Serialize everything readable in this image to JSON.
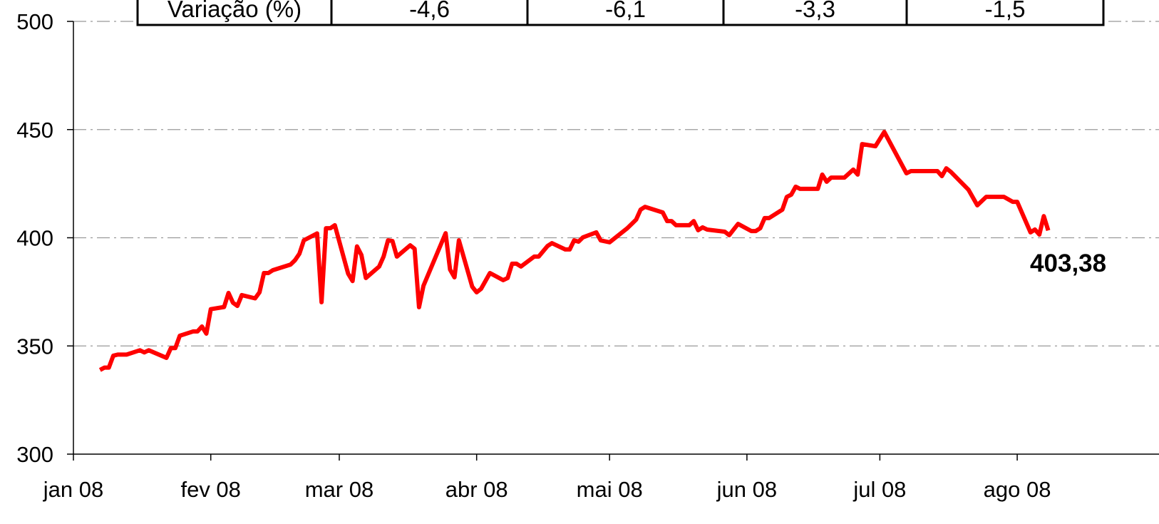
{
  "chart_data": {
    "type": "line",
    "table": {
      "rows": [
        [
          "Variação (%)",
          "-4,6",
          "-6,1",
          "-3,3",
          "-1,5"
        ]
      ]
    },
    "x": [
      6,
      7,
      8,
      9,
      10,
      12,
      15,
      16,
      17,
      21,
      22,
      23,
      24,
      27,
      28,
      29,
      30,
      31,
      34,
      35,
      36,
      37,
      38,
      41,
      42,
      43,
      44,
      45,
      49,
      50,
      51,
      52,
      55,
      56,
      57,
      58,
      59,
      62,
      63,
      64,
      65,
      66,
      69,
      70,
      71,
      72,
      73,
      76,
      77,
      78,
      79,
      84,
      85,
      86,
      87,
      90,
      91,
      92,
      94,
      97,
      98,
      99,
      100,
      101,
      104,
      105,
      107,
      108,
      111,
      112,
      113,
      114,
      115,
      118,
      119,
      121,
      125,
      127,
      128,
      129,
      133,
      134,
      135,
      136,
      139,
      140,
      141,
      142,
      143,
      147,
      148,
      150,
      153,
      154,
      155,
      156,
      157,
      160,
      161,
      162,
      163,
      164,
      168,
      169,
      170,
      171,
      174,
      176,
      177,
      178,
      181,
      183,
      188,
      189,
      195,
      196,
      197,
      198,
      202,
      204,
      206,
      210,
      212,
      213,
      216,
      217,
      218,
      219,
      220
    ],
    "series": [
      {
        "color": "#ff0000",
        "values": [
          338.9,
          340,
          340,
          345.5,
          346,
          346,
          348,
          347,
          348,
          344.5,
          349,
          349,
          354.7,
          356.7,
          356.7,
          359,
          355.7,
          367,
          368,
          374.5,
          370,
          368.5,
          373.5,
          372,
          374.8,
          383.7,
          383.7,
          385,
          387.6,
          389.6,
          392.6,
          398.8,
          402,
          370.2,
          404.4,
          404.4,
          405.8,
          383.4,
          380,
          396,
          392,
          381.4,
          386.7,
          391.3,
          398.8,
          398.5,
          391.3,
          396.5,
          394.9,
          367.9,
          377.8,
          402.1,
          385.3,
          381.7,
          398.8,
          377.4,
          374.8,
          376.4,
          383.7,
          380.4,
          381.4,
          388,
          388,
          386.7,
          391.3,
          391.3,
          396.2,
          397.5,
          394.6,
          394.6,
          398.8,
          398.2,
          400.2,
          402.5,
          398.8,
          397.9,
          404.4,
          408.4,
          413,
          414.3,
          411.7,
          407.7,
          407.7,
          405.8,
          405.8,
          407.7,
          403.5,
          404.8,
          403.8,
          402.8,
          401.2,
          406.4,
          403.1,
          403.1,
          404.4,
          409.1,
          409.1,
          413,
          418.9,
          419.9,
          423.6,
          422.6,
          422.6,
          429.2,
          425.9,
          427.8,
          427.8,
          431.5,
          429.2,
          443.3,
          442.3,
          448.9,
          429.8,
          430.8,
          430.8,
          428.5,
          432.1,
          430.5,
          422.2,
          415,
          418.9,
          418.9,
          416.6,
          416.6,
          402.5,
          403.8,
          401.5,
          410,
          403.38
        ]
      }
    ],
    "end_label": "403,38",
    "xlim": [
      0,
      245
    ],
    "xticks": [
      {
        "value": 0,
        "label": "jan 08"
      },
      {
        "value": 31,
        "label": "fev 08"
      },
      {
        "value": 60,
        "label": "mar 08"
      },
      {
        "value": 91,
        "label": "abr 08"
      },
      {
        "value": 121,
        "label": "mai 08"
      },
      {
        "value": 152,
        "label": "jun 08"
      },
      {
        "value": 182,
        "label": "jul 08"
      },
      {
        "value": 213,
        "label": "ago 08"
      }
    ],
    "ylim": [
      300,
      500
    ],
    "yticks": [
      300,
      350,
      400,
      450,
      500
    ],
    "grid": true
  }
}
